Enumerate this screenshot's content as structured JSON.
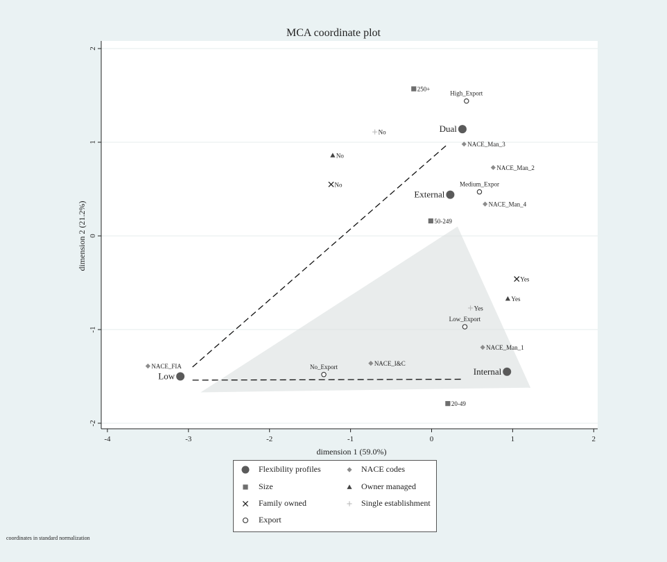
{
  "chart_data": {
    "type": "scatter",
    "title": "MCA coordinate plot",
    "xlabel": "dimension 1 (59.0%)",
    "ylabel": "dimension 2 (21.2%)",
    "xlim": [
      -4.2,
      2.05
    ],
    "ylim": [
      -2.12,
      2.05
    ],
    "xticks": [
      -4,
      -3,
      -2,
      -1,
      0,
      1,
      2
    ],
    "yticks": [
      -2,
      -1,
      0,
      1,
      2
    ],
    "grid": "horizontal",
    "legend_position": "bottom",
    "note": "coordinates in standard normalization",
    "series": [
      {
        "name": "Flexibility profiles",
        "marker": "circle-filled",
        "color": "#5a5a5a",
        "points": [
          {
            "label": "Dual",
            "x": 0.38,
            "y": 1.14
          },
          {
            "label": "External",
            "x": 0.23,
            "y": 0.44
          },
          {
            "label": "Low",
            "x": -3.1,
            "y": -1.5
          },
          {
            "label": "Internal",
            "x": 0.93,
            "y": -1.45
          }
        ]
      },
      {
        "name": "NACE codes",
        "marker": "diamond",
        "color": "#8c8c8c",
        "points": [
          {
            "label": "NACE_Man_3",
            "x": 0.4,
            "y": 0.98
          },
          {
            "label": "NACE_Man_2",
            "x": 0.76,
            "y": 0.73
          },
          {
            "label": "NACE_Man_4",
            "x": 0.66,
            "y": 0.34
          },
          {
            "label": "NACE_Man_1",
            "x": 0.63,
            "y": -1.19
          },
          {
            "label": "NACE_I&C",
            "x": -0.75,
            "y": -1.36
          },
          {
            "label": "NACE_FIA",
            "x": -3.5,
            "y": -1.39
          }
        ]
      },
      {
        "name": "Size",
        "marker": "square",
        "color": "#6e6e6e",
        "points": [
          {
            "label": "250+",
            "x": -0.22,
            "y": 1.57
          },
          {
            "label": "50-249",
            "x": -0.01,
            "y": 0.16
          },
          {
            "label": "20-49",
            "x": 0.2,
            "y": -1.79
          }
        ]
      },
      {
        "name": "Owner managed",
        "marker": "triangle",
        "color": "#444444",
        "points": [
          {
            "label": "No",
            "x": -1.22,
            "y": 0.86
          },
          {
            "label": "Yes",
            "x": 0.94,
            "y": -0.67
          }
        ]
      },
      {
        "name": "Family owned",
        "marker": "cross",
        "color": "#222222",
        "points": [
          {
            "label": "No",
            "x": -1.24,
            "y": 0.55
          },
          {
            "label": "Yes",
            "x": 1.05,
            "y": -0.46
          }
        ]
      },
      {
        "name": "Single establishment",
        "marker": "plus",
        "color": "#b5b5b5",
        "points": [
          {
            "label": "No",
            "x": -0.7,
            "y": 1.11
          },
          {
            "label": "Yes",
            "x": 0.48,
            "y": -0.77
          }
        ]
      },
      {
        "name": "Export",
        "marker": "circle-open",
        "color": "#333333",
        "points": [
          {
            "label": "High_Export",
            "x": 0.43,
            "y": 1.44
          },
          {
            "label": "Medium_Expor",
            "x": 0.59,
            "y": 0.47
          },
          {
            "label": "Low_Export",
            "x": 0.41,
            "y": -0.97
          },
          {
            "label": "No_Export",
            "x": -1.33,
            "y": -1.48
          }
        ]
      }
    ]
  }
}
